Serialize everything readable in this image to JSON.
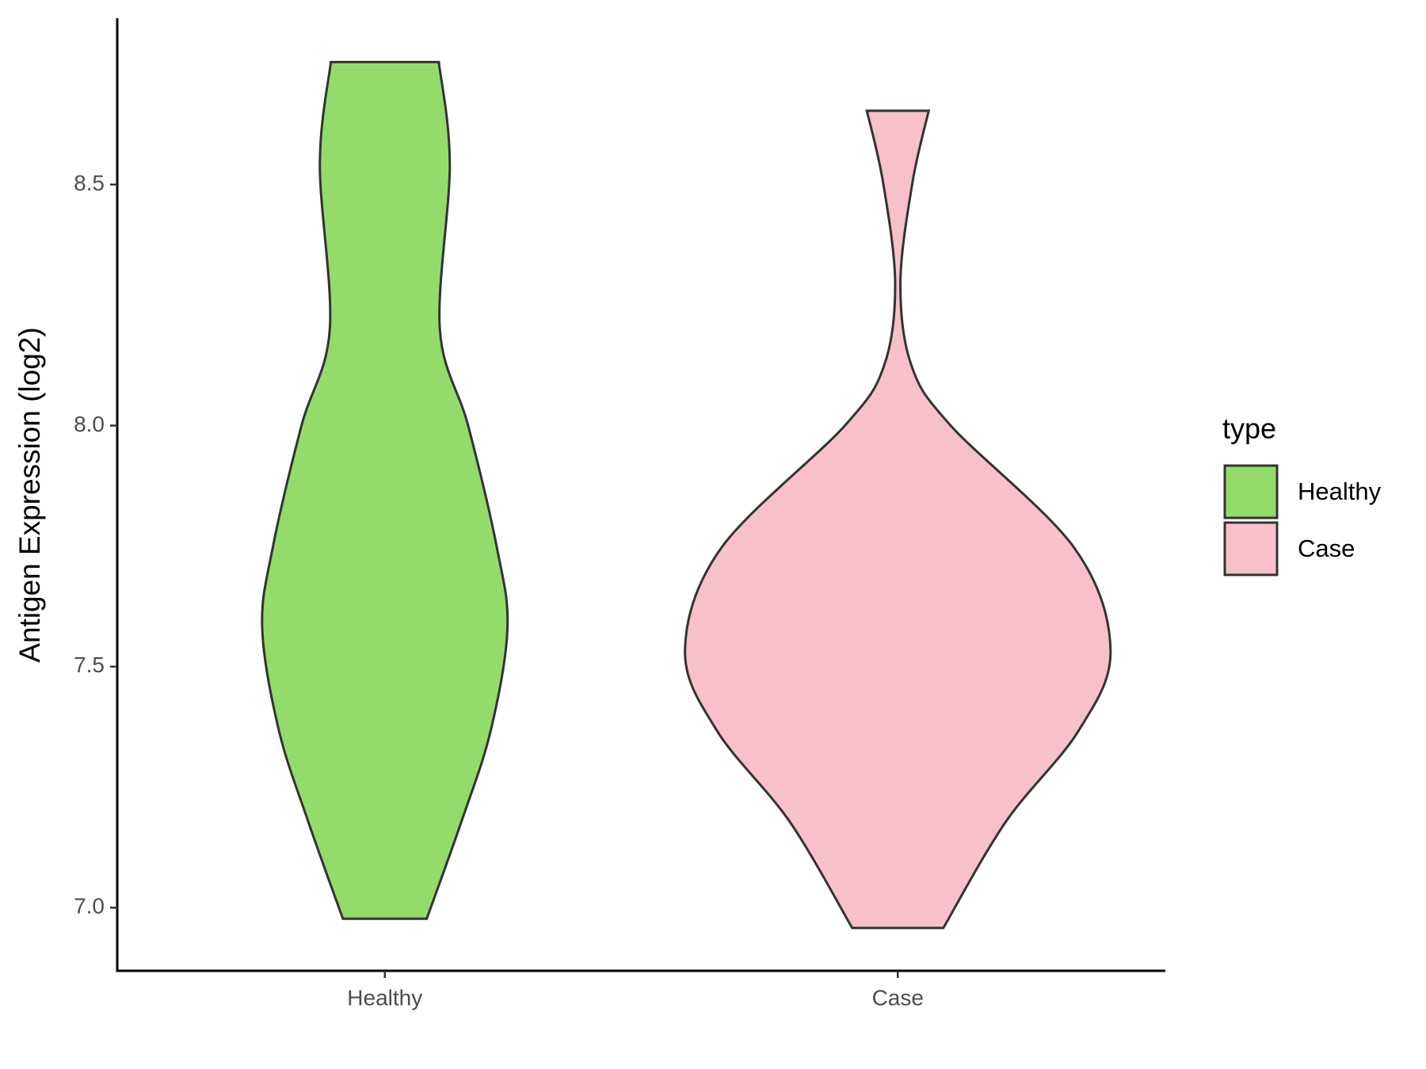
{
  "chart_data": {
    "type": "violin",
    "y_label": "Antigen Expression (log2)",
    "legend_title": "type",
    "categories": [
      "Healthy",
      "Case"
    ],
    "series": [
      {
        "name": "Healthy",
        "color": "#93dc6b",
        "y": [
          8.754,
          8.542,
          8.2,
          8.0,
          7.746,
          7.58,
          7.367,
          7.178,
          6.977
        ],
        "width": [
          0.103,
          0.124,
          0.105,
          0.159,
          0.214,
          0.234,
          0.202,
          0.146,
          0.08
        ]
      },
      {
        "name": "Case",
        "color": "#f7c0cb",
        "y": [
          8.653,
          8.504,
          8.295,
          8.125,
          8.0,
          7.746,
          7.534,
          7.367,
          7.178,
          6.958
        ],
        "width": [
          0.059,
          0.028,
          0.005,
          0.026,
          0.101,
          0.337,
          0.406,
          0.345,
          0.206,
          0.087
        ]
      }
    ],
    "ylim": [
      6.869,
      8.845
    ],
    "yticks": [
      {
        "value": 7,
        "label": "7.0"
      },
      7.5,
      {
        "value": 8,
        "label": "8.0"
      },
      8.5
    ]
  }
}
